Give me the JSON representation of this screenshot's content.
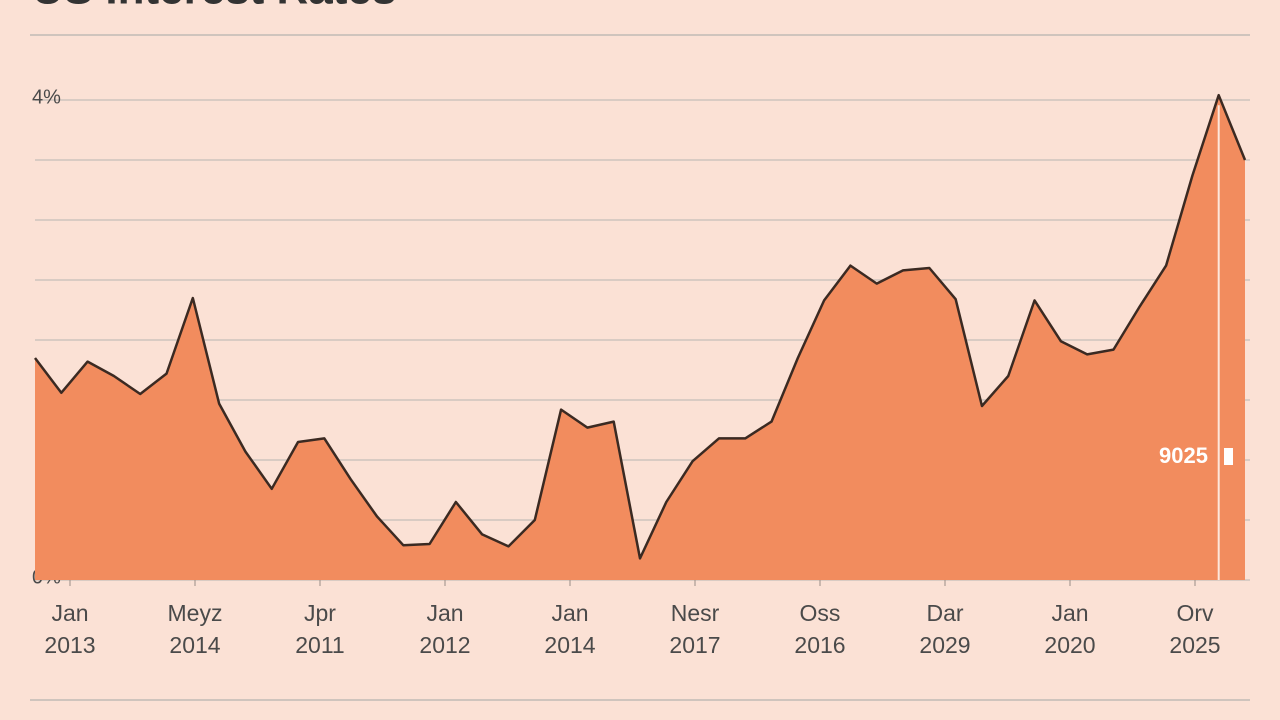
{
  "chart_data": {
    "type": "area",
    "title": "US Interest Rates",
    "values": [
      1.85,
      1.56,
      1.82,
      1.7,
      1.55,
      1.72,
      2.35,
      1.47,
      1.07,
      0.76,
      1.15,
      1.18,
      0.84,
      0.53,
      0.29,
      0.3,
      0.65,
      0.38,
      0.28,
      0.5,
      1.42,
      1.27,
      1.32,
      0.18,
      0.65,
      0.99,
      1.18,
      1.18,
      1.32,
      1.85,
      2.33,
      2.62,
      2.47,
      2.58,
      2.6,
      2.34,
      1.45,
      1.7,
      2.33,
      1.99,
      1.88,
      1.92,
      2.28,
      2.62,
      3.37,
      4.04,
      3.5
    ],
    "x_labels": [
      [
        "Jan",
        "2013"
      ],
      [
        "Meyz",
        "2014"
      ],
      [
        "Jpr",
        "2011"
      ],
      [
        "Jan",
        "2012"
      ],
      [
        "Jan",
        "2014"
      ],
      [
        "Nesr",
        "2017"
      ],
      [
        "Oss",
        "2016"
      ],
      [
        "Dar",
        "2029"
      ],
      [
        "Jan",
        "2020"
      ],
      [
        "Orv",
        "2025"
      ]
    ],
    "ylim": [
      0,
      4
    ],
    "yticks": [
      {
        "value": 0,
        "label": "0%"
      },
      {
        "value": 4,
        "label": "4%"
      }
    ],
    "gridlines": [
      0.5,
      1,
      1.5,
      2,
      2.5,
      3,
      3.5
    ],
    "grid": true,
    "color": "#f28c5e",
    "line_color": "#3b2a22",
    "annotation": "9025"
  }
}
